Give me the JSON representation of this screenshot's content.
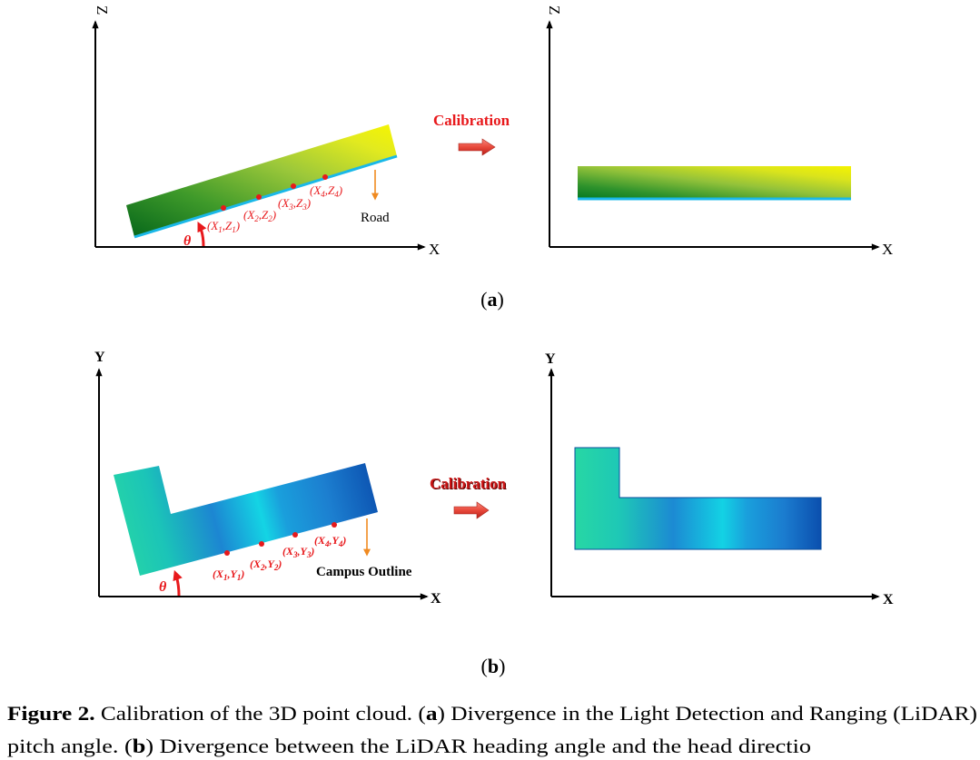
{
  "panel_a": {
    "before": {
      "z_axis_label": "Z",
      "x_axis_label": "X",
      "theta": "θ",
      "road_label": "Road",
      "points": [
        {
          "pre": "(X",
          "s1": "1",
          "mid": ",Z",
          "s2": "1",
          "post": ")"
        },
        {
          "pre": "(X",
          "s1": "2",
          "mid": ",Z",
          "s2": "2",
          "post": ")"
        },
        {
          "pre": "(X",
          "s1": "3",
          "mid": ",Z",
          "s2": "3",
          "post": ")"
        },
        {
          "pre": "(X",
          "s1": "4",
          "mid": ",Z",
          "s2": "4",
          "post": ")"
        }
      ]
    },
    "calibration_label": "Calibration",
    "after": {
      "z_axis_label": "Z",
      "x_axis_label": "X"
    },
    "panel_label": {
      "open": "(",
      "letter": "a",
      "close": ")"
    }
  },
  "panel_b": {
    "before": {
      "y_axis_label": "Y",
      "x_axis_label": "X",
      "theta": "θ",
      "outline_label": "Campus Outline",
      "points": [
        {
          "pre": "(X",
          "s1": "1",
          "mid": ",Y",
          "s2": "1",
          "post": ")"
        },
        {
          "pre": "(X",
          "s1": "2",
          "mid": ",Y",
          "s2": "2",
          "post": ")"
        },
        {
          "pre": "(X",
          "s1": "3",
          "mid": ",Y",
          "s2": "3",
          "post": ")"
        },
        {
          "pre": "(X",
          "s1": "4",
          "mid": ",Y",
          "s2": "4",
          "post": ")"
        }
      ]
    },
    "calibration_label": "Calibration",
    "after": {
      "y_axis_label": "Y",
      "x_axis_label": "X"
    },
    "panel_label": {
      "open": "(",
      "letter": "b",
      "close": ")"
    }
  },
  "caption": {
    "figure_label": "Figure 2.",
    "line1_a": " Calibration of the 3D point cloud. (",
    "line1_b": "a",
    "line1_c": ") Divergence in the Light Detection and Ranging (LiDAR)",
    "line2_a": "pitch angle. (",
    "line2_b": "b",
    "line2_c": ") Divergence between the LiDAR heading angle and the head directio"
  },
  "colors": {
    "annotation_red": "#e8191c",
    "marker_orange": "#f08a20",
    "edge_cyan": "#1ab8e8"
  }
}
